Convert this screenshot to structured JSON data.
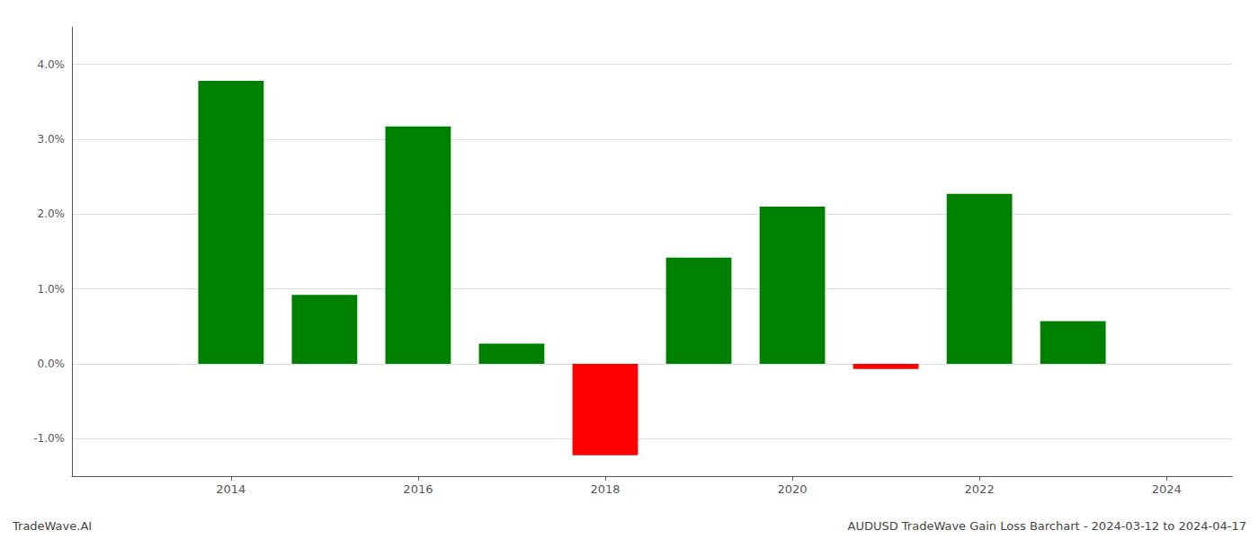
{
  "chart_data": {
    "type": "bar",
    "x": [
      2014,
      2015,
      2016,
      2017,
      2018,
      2019,
      2020,
      2021,
      2022,
      2023
    ],
    "values": [
      0.0378,
      0.0092,
      0.0317,
      0.0027,
      -0.0122,
      0.0142,
      0.021,
      -0.0007,
      0.0227,
      0.0057
    ],
    "colors": [
      "#008000",
      "#008000",
      "#008000",
      "#008000",
      "#ff0000",
      "#008000",
      "#008000",
      "#ff0000",
      "#008000",
      "#008000"
    ],
    "xlim": [
      2012.3,
      2024.7
    ],
    "xticks": [
      2014,
      2016,
      2018,
      2020,
      2022,
      2024
    ],
    "ylim": [
      -0.015,
      0.045
    ],
    "yticks": [
      {
        "value": -0.01,
        "label": "-1.0%"
      },
      {
        "value": 0.0,
        "label": "0.0%"
      },
      {
        "value": 0.01,
        "label": "1.0%"
      },
      {
        "value": 0.02,
        "label": "2.0%"
      },
      {
        "value": 0.03,
        "label": "3.0%"
      },
      {
        "value": 0.04,
        "label": "4.0%"
      }
    ],
    "grid": true,
    "annotations": [
      "TradeWave.AI",
      "AUDUSD TradeWave Gain Loss Barchart - 2024-03-12 to 2024-04-17"
    ]
  }
}
